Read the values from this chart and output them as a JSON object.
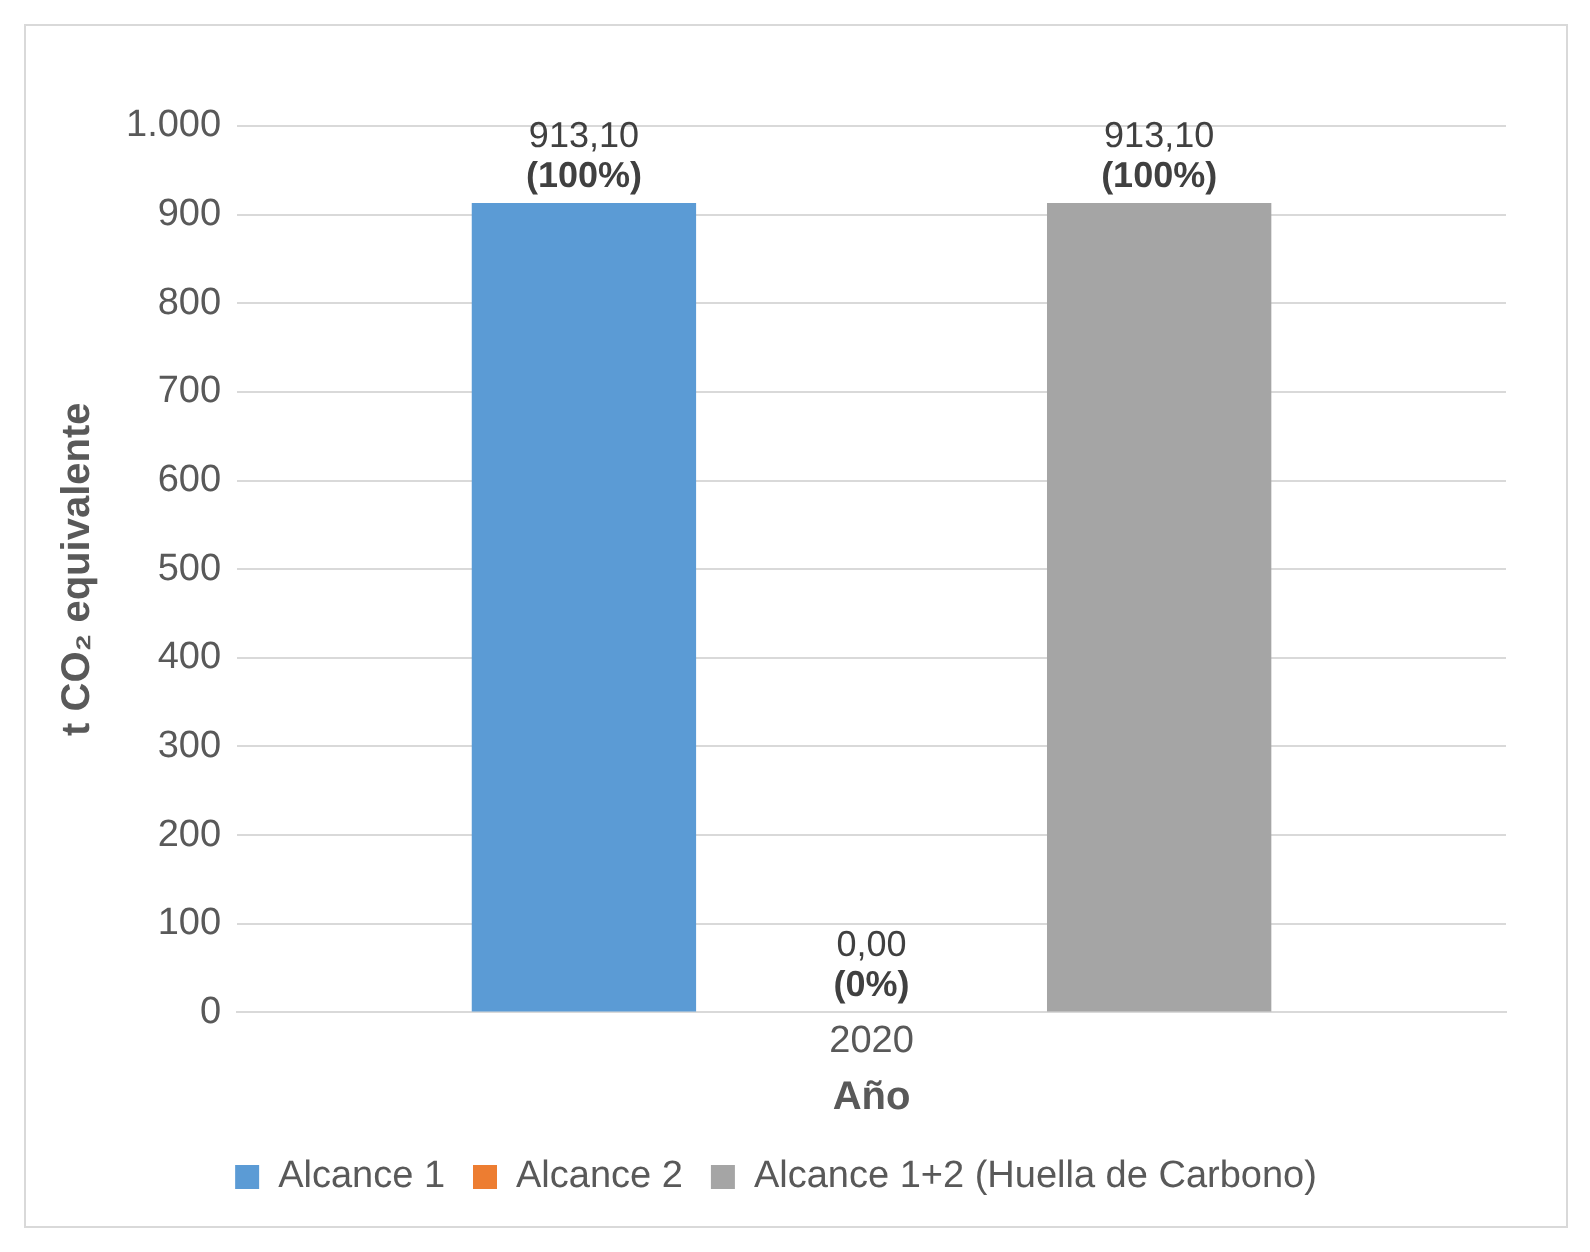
{
  "chart_data": {
    "type": "bar",
    "xlabel": "Año",
    "ylabel": "t CO₂ equivalente",
    "categories": [
      "2020"
    ],
    "series": [
      {
        "name": "Alcance 1",
        "color": "#5b9bd5",
        "values": [
          913.1
        ],
        "value_labels": [
          "913,10 (100%)"
        ]
      },
      {
        "name": "Alcance 2",
        "color": "#ed7d31",
        "values": [
          0
        ],
        "value_labels": [
          "0,00 (0%)"
        ]
      },
      {
        "name": "Alcance 1+2 (Huella de Carbono)",
        "color": "#a5a5a5",
        "values": [
          913.1
        ],
        "value_labels": [
          "913,10 (100%)"
        ]
      }
    ],
    "ylim": [
      0,
      1000
    ],
    "yticks": [
      0,
      100,
      200,
      300,
      400,
      500,
      600,
      700,
      800,
      900,
      {
        "value": 1000,
        "label": "1.000"
      }
    ],
    "grid": "y",
    "legend": "bottom"
  }
}
